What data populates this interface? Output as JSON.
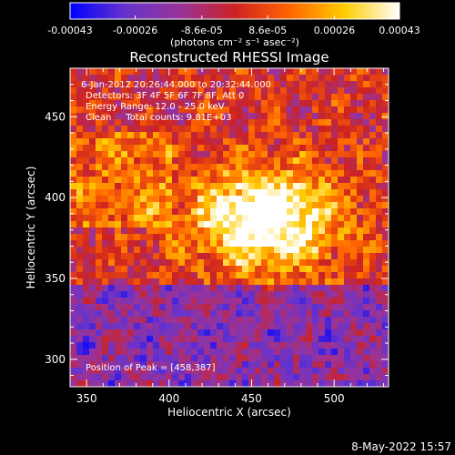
{
  "colorbar": {
    "tick_labels": [
      "-0.00043",
      "-0.00026",
      "-8.6e-05",
      "8.6e-05",
      "0.00026",
      "0.00043"
    ],
    "tick_values": [
      -0.00043,
      -0.00026,
      -8.6e-05,
      8.6e-05,
      0.00026,
      0.00043
    ],
    "range": [
      -0.00043,
      0.00043
    ],
    "units_label": "(photons cm⁻² s⁻¹ asec⁻²)",
    "colormap_stops": [
      "#0000ff",
      "#6633cc",
      "#993399",
      "#cc2222",
      "#ff6600",
      "#ffcc00",
      "#ffffff"
    ]
  },
  "image": {
    "title": "Reconstructed RHESSI Image",
    "annotation_lines": [
      "6-Jan-2012 20:26:44.000 to 20:32:44.000",
      "Detectors: 3F 4F 5F 6F 7F 8F, Att 0",
      "Energy Range: 12.0 - 25.0 keV",
      "Clean     Total counts: 9.81E+03"
    ],
    "peak_label": "Position of Peak = [458,387]",
    "peak_position": [
      458,
      387
    ],
    "x_axis": {
      "label": "Heliocentric X (arcsec)",
      "range": [
        340,
        533
      ],
      "ticks": [
        350,
        400,
        450,
        500
      ],
      "tick_labels": [
        "350",
        "400",
        "450",
        "500"
      ]
    },
    "y_axis": {
      "label": "Heliocentric Y (arcsec)",
      "range": [
        283,
        480
      ],
      "ticks": [
        300,
        350,
        400,
        450
      ],
      "tick_labels": [
        "300",
        "350",
        "400",
        "450"
      ]
    }
  },
  "footer": {
    "date": "8-May-2022 15:57"
  }
}
